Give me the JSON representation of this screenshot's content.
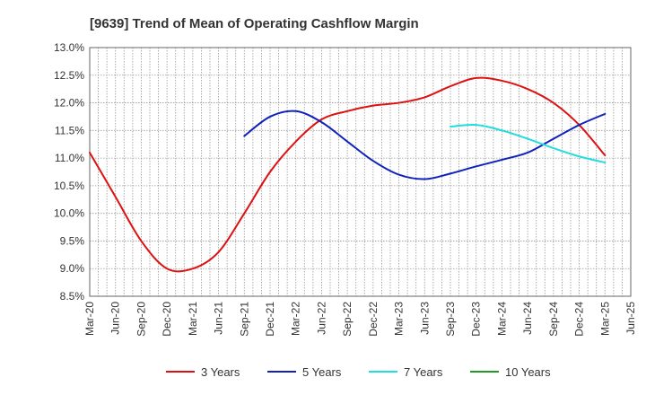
{
  "chart_data": {
    "type": "line",
    "title": "[9639]  Trend of Mean of Operating Cashflow Margin",
    "xlabel": "",
    "ylabel": "",
    "x_ticks": [
      "Mar-20",
      "Jun-20",
      "Sep-20",
      "Dec-20",
      "Mar-21",
      "Jun-21",
      "Sep-21",
      "Dec-21",
      "Mar-22",
      "Jun-22",
      "Sep-22",
      "Dec-22",
      "Mar-23",
      "Jun-23",
      "Sep-23",
      "Dec-23",
      "Mar-24",
      "Jun-24",
      "Sep-24",
      "Dec-24",
      "Mar-25",
      "Jun-25"
    ],
    "y_ticks": [
      "8.5%",
      "9.0%",
      "9.5%",
      "10.0%",
      "10.5%",
      "11.0%",
      "11.5%",
      "12.0%",
      "12.5%",
      "13.0%"
    ],
    "ylim": [
      8.5,
      13.0
    ],
    "grid": true,
    "legend_position": "bottom",
    "series": [
      {
        "name": "3 Years",
        "color": "#dd1111",
        "points": [
          [
            "Mar-20",
            11.1
          ],
          [
            "Jun-20",
            10.3
          ],
          [
            "Sep-20",
            9.5
          ],
          [
            "Dec-20",
            9.0
          ],
          [
            "Mar-21",
            9.0
          ],
          [
            "Jun-21",
            9.3
          ],
          [
            "Sep-21",
            10.0
          ],
          [
            "Dec-21",
            10.75
          ],
          [
            "Mar-22",
            11.3
          ],
          [
            "Jun-22",
            11.7
          ],
          [
            "Sep-22",
            11.85
          ],
          [
            "Dec-22",
            11.95
          ],
          [
            "Mar-23",
            12.0
          ],
          [
            "Jun-23",
            12.1
          ],
          [
            "Sep-23",
            12.3
          ],
          [
            "Dec-23",
            12.45
          ],
          [
            "Mar-24",
            12.4
          ],
          [
            "Jun-24",
            12.25
          ],
          [
            "Sep-24",
            12.0
          ],
          [
            "Dec-24",
            11.6
          ],
          [
            "Mar-25",
            11.05
          ]
        ]
      },
      {
        "name": "5 Years",
        "color": "#1122bb",
        "points": [
          [
            "Sep-21",
            11.4
          ],
          [
            "Dec-21",
            11.75
          ],
          [
            "Mar-22",
            11.85
          ],
          [
            "Jun-22",
            11.65
          ],
          [
            "Sep-22",
            11.3
          ],
          [
            "Dec-22",
            10.95
          ],
          [
            "Mar-23",
            10.7
          ],
          [
            "Jun-23",
            10.62
          ],
          [
            "Sep-23",
            10.72
          ],
          [
            "Dec-23",
            10.85
          ],
          [
            "Mar-24",
            10.97
          ],
          [
            "Jun-24",
            11.1
          ],
          [
            "Sep-24",
            11.35
          ],
          [
            "Dec-24",
            11.6
          ],
          [
            "Mar-25",
            11.8
          ]
        ]
      },
      {
        "name": "7 Years",
        "color": "#22dddd",
        "points": [
          [
            "Sep-23",
            11.57
          ],
          [
            "Dec-23",
            11.6
          ],
          [
            "Mar-24",
            11.5
          ],
          [
            "Jun-24",
            11.35
          ],
          [
            "Sep-24",
            11.18
          ],
          [
            "Dec-24",
            11.03
          ],
          [
            "Mar-25",
            10.92
          ]
        ]
      },
      {
        "name": "10 Years",
        "color": "#229922",
        "points": []
      }
    ]
  }
}
